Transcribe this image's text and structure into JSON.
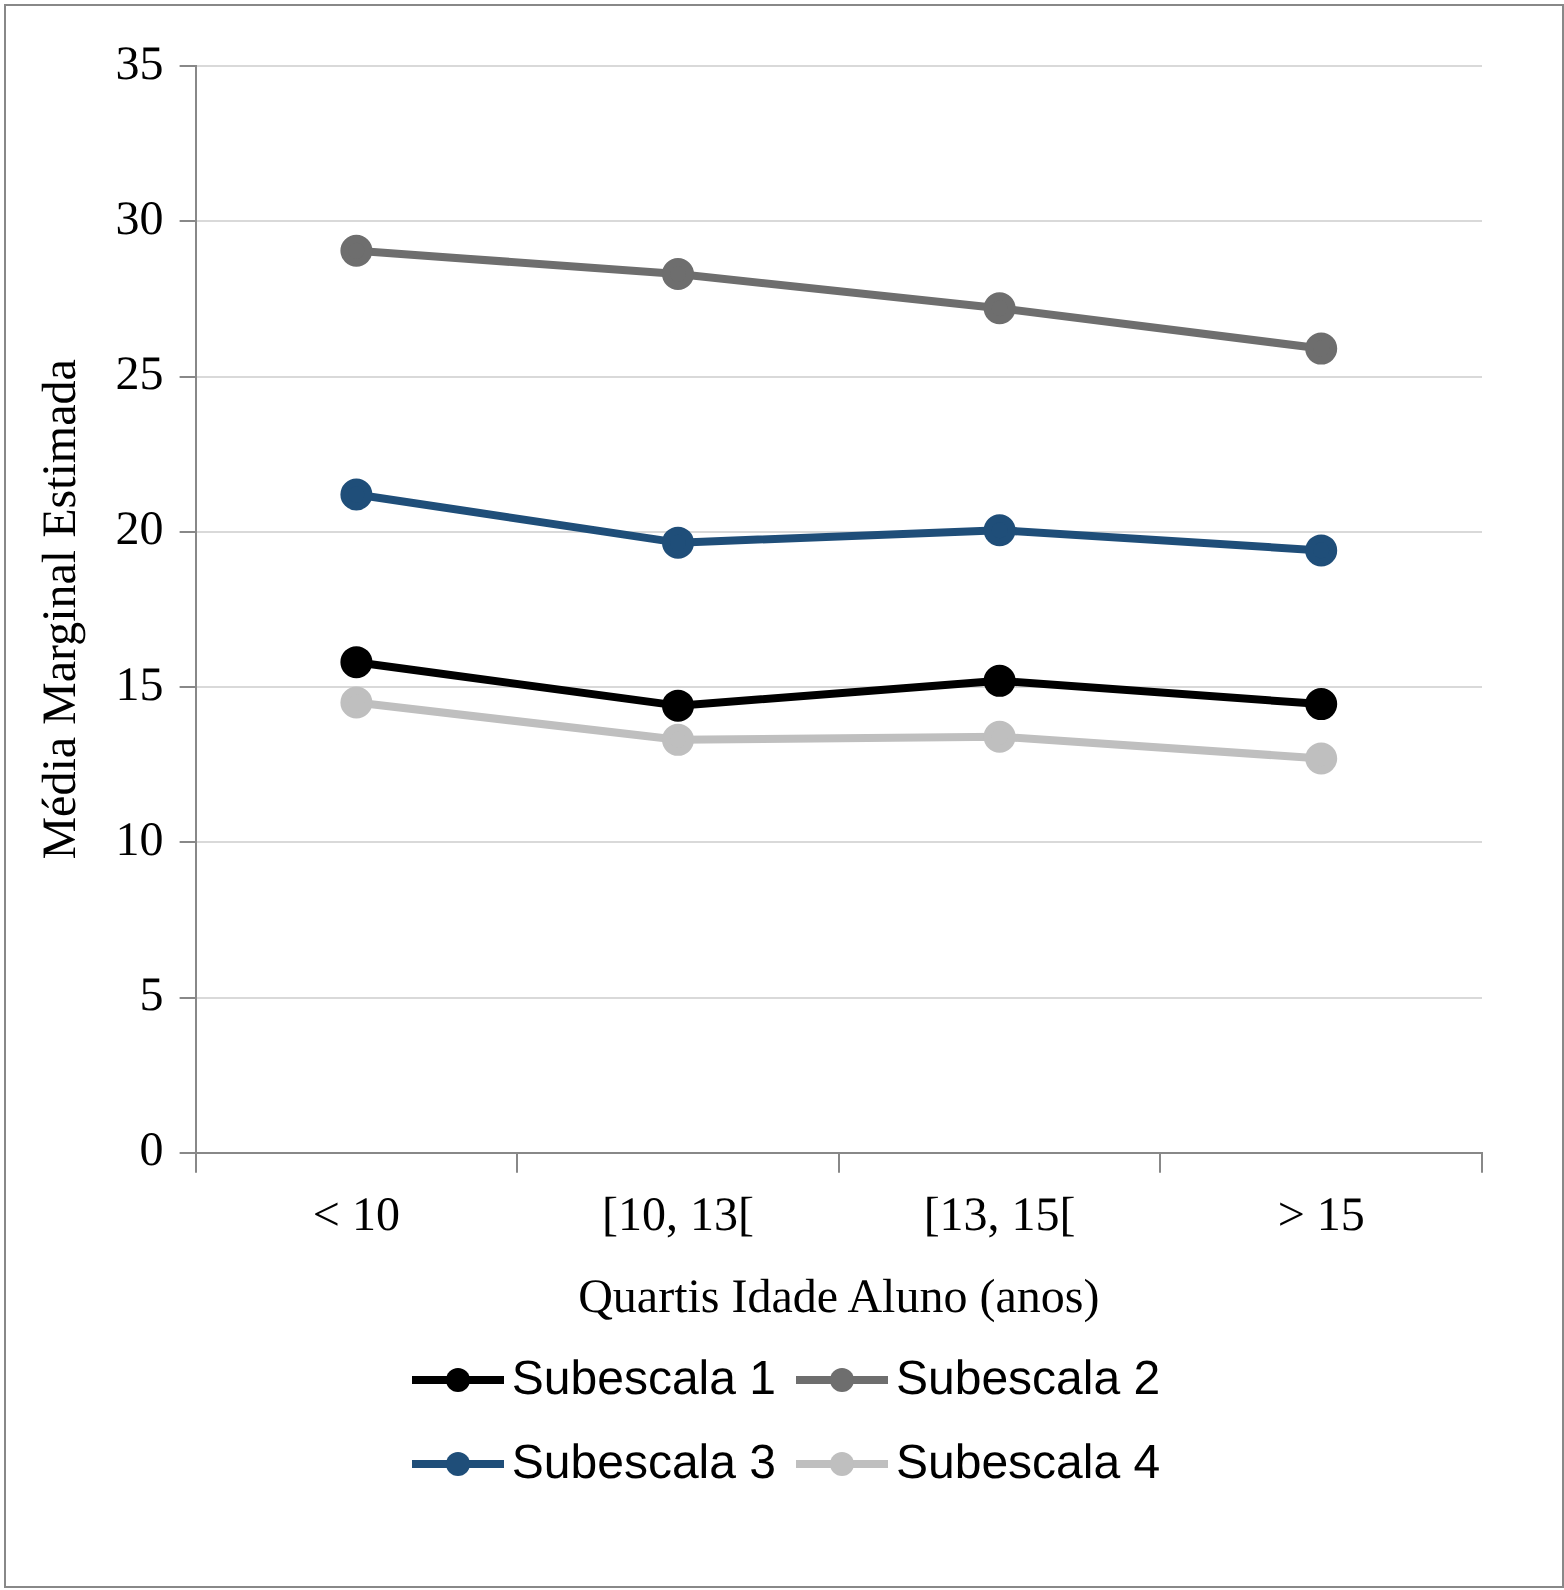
{
  "chart_data": {
    "type": "line",
    "xlabel": "Quartis Idade Aluno (anos)",
    "ylabel": "Média Marginal Estimada",
    "categories": [
      "< 10",
      "[10, 13[",
      "[13, 15[",
      "> 15"
    ],
    "series": [
      {
        "name": "Subescala 1",
        "color": "#000000",
        "values": [
          15.8,
          14.4,
          15.2,
          14.45
        ]
      },
      {
        "name": "Subescala 2",
        "color": "#6e6e6e",
        "values": [
          29.05,
          28.3,
          27.2,
          25.9
        ]
      },
      {
        "name": "Subescala 3",
        "color": "#1f4e79",
        "values": [
          21.2,
          19.65,
          20.05,
          19.4
        ]
      },
      {
        "name": "Subescala 4",
        "color": "#bfbfbf",
        "values": [
          14.5,
          13.3,
          13.4,
          12.7
        ]
      }
    ],
    "ylim": [
      0,
      35
    ],
    "yticks": [
      0,
      5,
      10,
      15,
      20,
      25,
      30,
      35
    ],
    "grid": "y",
    "legend": "bottom",
    "marker": "circle",
    "line_style": "solid"
  }
}
